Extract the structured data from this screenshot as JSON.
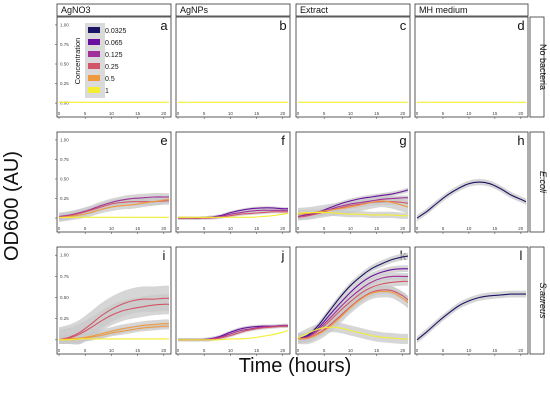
{
  "figure": {
    "ylabel": "OD600 (AU)",
    "xlabel": "Time (hours)"
  },
  "columns": [
    "AgNO3",
    "AgNPs",
    "Extract",
    "MH medium"
  ],
  "rows": [
    "No bacteria",
    "E.coli",
    "S.aureus"
  ],
  "panel_letters": [
    "a",
    "b",
    "c",
    "d",
    "e",
    "f",
    "g",
    "h",
    "i",
    "j",
    "k",
    "l"
  ],
  "legend": {
    "title": "Concentration",
    "items": [
      {
        "label": "0.0325",
        "color": "#1a1464"
      },
      {
        "label": "0.065",
        "color": "#6a0fa0"
      },
      {
        "label": "0.125",
        "color": "#a0309a"
      },
      {
        "label": "0.25",
        "color": "#d45468"
      },
      {
        "label": "0.5",
        "color": "#f09a40"
      },
      {
        "label": "1",
        "color": "#f4ee30"
      }
    ]
  },
  "chart_data": {
    "type": "line",
    "x_ticks": [
      0,
      5,
      10,
      15,
      20
    ],
    "xlim": [
      0,
      21
    ],
    "y_ticks": [
      0,
      0.25,
      0.5,
      0.75,
      1.0
    ],
    "y_tick_labels": [
      "0.00",
      "0.25",
      "0.50",
      "0.75",
      "1.00"
    ],
    "ylim": [
      -0.05,
      1.05
    ],
    "ribbon_color": "#c8c8c8",
    "x": [
      0,
      2,
      4,
      6,
      8,
      10,
      12,
      14,
      16,
      18,
      20,
      21
    ],
    "panels": [
      {
        "letter": "a",
        "series": [
          {
            "color": "#f4ee30",
            "values": [
              0.01,
              0.01,
              0.01,
              0.01,
              0.01,
              0.01,
              0.01,
              0.01,
              0.01,
              0.01,
              0.01,
              0.01
            ]
          }
        ]
      },
      {
        "letter": "b",
        "series": [
          {
            "color": "#f4ee30",
            "values": [
              0.01,
              0.01,
              0.01,
              0.01,
              0.01,
              0.01,
              0.01,
              0.01,
              0.01,
              0.01,
              0.01,
              0.01
            ]
          }
        ]
      },
      {
        "letter": "c",
        "series": [
          {
            "color": "#f4ee30",
            "values": [
              0.01,
              0.01,
              0.01,
              0.01,
              0.01,
              0.01,
              0.01,
              0.01,
              0.01,
              0.01,
              0.01,
              0.01
            ]
          }
        ]
      },
      {
        "letter": "d",
        "series": [
          {
            "color": "#f4ee30",
            "values": [
              0.01,
              0.01,
              0.01,
              0.01,
              0.01,
              0.01,
              0.01,
              0.01,
              0.01,
              0.01,
              0.01,
              0.01
            ]
          }
        ]
      },
      {
        "letter": "e",
        "series": [
          {
            "color": "#a0309a",
            "band": 0.05,
            "values": [
              0.02,
              0.04,
              0.07,
              0.11,
              0.16,
              0.2,
              0.23,
              0.25,
              0.26,
              0.27,
              0.27,
              0.27
            ]
          },
          {
            "color": "#d45468",
            "band": 0.05,
            "values": [
              0.01,
              0.03,
              0.06,
              0.1,
              0.14,
              0.18,
              0.2,
              0.21,
              0.21,
              0.21,
              0.22,
              0.22
            ]
          },
          {
            "color": "#f09a40",
            "band": 0.05,
            "values": [
              0.0,
              0.02,
              0.04,
              0.07,
              0.11,
              0.14,
              0.16,
              0.17,
              0.19,
              0.21,
              0.23,
              0.24
            ]
          },
          {
            "color": "#f4ee30",
            "band": 0.0,
            "values": [
              0.01,
              0.01,
              0.01,
              0.01,
              0.01,
              0.01,
              0.01,
              0.01,
              0.01,
              0.01,
              0.01,
              0.01
            ]
          }
        ]
      },
      {
        "letter": "f",
        "series": [
          {
            "color": "#6a0fa0",
            "band": 0.02,
            "values": [
              0.0,
              0.0,
              0.0,
              0.01,
              0.03,
              0.07,
              0.1,
              0.12,
              0.13,
              0.13,
              0.12,
              0.12
            ]
          },
          {
            "color": "#a0309a",
            "band": 0.02,
            "values": [
              0.0,
              0.0,
              0.0,
              0.01,
              0.02,
              0.05,
              0.07,
              0.09,
              0.1,
              0.1,
              0.1,
              0.1
            ]
          },
          {
            "color": "#d45468",
            "band": 0.02,
            "values": [
              0.0,
              0.0,
              0.0,
              0.0,
              0.01,
              0.03,
              0.05,
              0.06,
              0.07,
              0.08,
              0.08,
              0.08
            ]
          },
          {
            "color": "#f4ee30",
            "band": 0.0,
            "values": [
              0.01,
              0.01,
              0.01,
              0.01,
              0.01,
              0.01,
              0.01,
              0.01,
              0.02,
              0.03,
              0.05,
              0.06
            ]
          }
        ]
      },
      {
        "letter": "g",
        "series": [
          {
            "color": "#6a0fa0",
            "band": 0.03,
            "values": [
              0.02,
              0.05,
              0.08,
              0.13,
              0.18,
              0.22,
              0.25,
              0.27,
              0.29,
              0.31,
              0.34,
              0.36
            ]
          },
          {
            "color": "#a0309a",
            "band": 0.03,
            "values": [
              0.02,
              0.04,
              0.07,
              0.11,
              0.15,
              0.18,
              0.2,
              0.22,
              0.24,
              0.25,
              0.26,
              0.26
            ]
          },
          {
            "color": "#d45468",
            "band": 0.04,
            "values": [
              0.01,
              0.03,
              0.06,
              0.1,
              0.13,
              0.16,
              0.18,
              0.2,
              0.21,
              0.21,
              0.2,
              0.19
            ]
          },
          {
            "color": "#f09a40",
            "band": 0.08,
            "values": [
              0.05,
              0.06,
              0.08,
              0.1,
              0.12,
              0.14,
              0.17,
              0.2,
              0.22,
              0.2,
              0.16,
              0.14
            ]
          },
          {
            "color": "#f4ee30",
            "band": 0.04,
            "values": [
              0.06,
              0.07,
              0.07,
              0.07,
              0.06,
              0.05,
              0.05,
              0.04,
              0.04,
              0.04,
              0.03,
              0.03
            ]
          }
        ]
      },
      {
        "letter": "h",
        "series": [
          {
            "color": "#1a1464",
            "band": 0.04,
            "values": [
              0.0,
              0.09,
              0.2,
              0.3,
              0.38,
              0.44,
              0.46,
              0.44,
              0.38,
              0.3,
              0.24,
              0.21
            ]
          }
        ]
      },
      {
        "letter": "i",
        "series": [
          {
            "color": "#d45468",
            "band": 0.15,
            "values": [
              0.0,
              0.03,
              0.09,
              0.18,
              0.28,
              0.36,
              0.42,
              0.46,
              0.48,
              0.48,
              0.49,
              0.49
            ]
          },
          {
            "color": "#d45468",
            "band": 0.12,
            "values": [
              0.0,
              0.02,
              0.07,
              0.14,
              0.22,
              0.29,
              0.34,
              0.37,
              0.39,
              0.41,
              0.42,
              0.42
            ]
          },
          {
            "color": "#f09a40",
            "band": 0.05,
            "values": [
              0.0,
              0.01,
              0.02,
              0.04,
              0.07,
              0.1,
              0.13,
              0.15,
              0.17,
              0.18,
              0.19,
              0.19
            ]
          },
          {
            "color": "#f09a40",
            "band": 0.04,
            "values": [
              0.0,
              0.0,
              0.01,
              0.03,
              0.05,
              0.08,
              0.1,
              0.12,
              0.14,
              0.15,
              0.16,
              0.16
            ]
          },
          {
            "color": "#f4ee30",
            "band": 0.0,
            "values": [
              0.0,
              0.0,
              0.01,
              0.01,
              0.01,
              0.01,
              0.01,
              0.01,
              0.01,
              0.01,
              0.01,
              0.01
            ]
          }
        ]
      },
      {
        "letter": "j",
        "series": [
          {
            "color": "#6a0fa0",
            "band": 0.02,
            "values": [
              0.0,
              0.0,
              0.0,
              0.01,
              0.04,
              0.09,
              0.13,
              0.15,
              0.16,
              0.16,
              0.16,
              0.16
            ]
          },
          {
            "color": "#a0309a",
            "band": 0.02,
            "values": [
              0.0,
              0.0,
              0.0,
              0.01,
              0.03,
              0.07,
              0.11,
              0.13,
              0.15,
              0.16,
              0.17,
              0.17
            ]
          },
          {
            "color": "#d45468",
            "band": 0.02,
            "values": [
              0.0,
              0.0,
              0.0,
              0.0,
              0.02,
              0.05,
              0.09,
              0.12,
              0.14,
              0.15,
              0.16,
              0.16
            ]
          },
          {
            "color": "#f4ee30",
            "band": 0.0,
            "values": [
              0.0,
              0.0,
              0.0,
              0.0,
              0.0,
              0.01,
              0.01,
              0.02,
              0.04,
              0.06,
              0.09,
              0.11
            ]
          }
        ]
      },
      {
        "letter": "k",
        "series": [
          {
            "color": "#1a1464",
            "band": 0.04,
            "values": [
              0.01,
              0.06,
              0.18,
              0.34,
              0.5,
              0.64,
              0.75,
              0.84,
              0.9,
              0.95,
              0.98,
              0.99
            ]
          },
          {
            "color": "#6a0fa0",
            "band": 0.04,
            "values": [
              0.01,
              0.05,
              0.15,
              0.29,
              0.43,
              0.56,
              0.67,
              0.75,
              0.8,
              0.83,
              0.84,
              0.84
            ]
          },
          {
            "color": "#a0309a",
            "band": 0.04,
            "values": [
              0.01,
              0.04,
              0.13,
              0.25,
              0.38,
              0.5,
              0.6,
              0.68,
              0.73,
              0.75,
              0.75,
              0.75
            ]
          },
          {
            "color": "#d45468",
            "band": 0.05,
            "values": [
              0.01,
              0.03,
              0.11,
              0.22,
              0.34,
              0.45,
              0.55,
              0.62,
              0.66,
              0.68,
              0.69,
              0.69
            ]
          },
          {
            "color": "#d45468",
            "band": 0.05,
            "values": [
              0.01,
              0.02,
              0.08,
              0.17,
              0.28,
              0.39,
              0.49,
              0.56,
              0.59,
              0.58,
              0.52,
              0.47
            ]
          },
          {
            "color": "#f09a40",
            "band": 0.07,
            "values": [
              0.01,
              0.02,
              0.07,
              0.15,
              0.26,
              0.38,
              0.48,
              0.55,
              0.57,
              0.56,
              0.49,
              0.44
            ]
          },
          {
            "color": "#f4ee30",
            "band": 0.06,
            "values": [
              0.02,
              0.08,
              0.13,
              0.15,
              0.14,
              0.11,
              0.08,
              0.05,
              0.03,
              0.02,
              0.01,
              0.01
            ]
          }
        ]
      },
      {
        "letter": "l",
        "series": [
          {
            "color": "#1a1464",
            "band": 0.04,
            "values": [
              0.0,
              0.1,
              0.21,
              0.31,
              0.4,
              0.46,
              0.5,
              0.52,
              0.53,
              0.54,
              0.54,
              0.54
            ]
          }
        ]
      }
    ]
  }
}
